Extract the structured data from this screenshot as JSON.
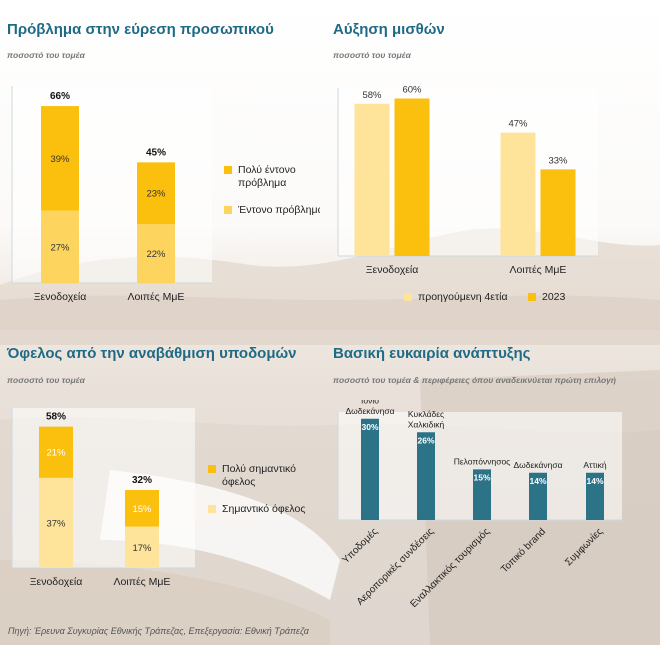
{
  "colors": {
    "dark_yellow": "#fbbf0e",
    "light_yellow": "#fdd55e",
    "pale_yellow": "#fde49a",
    "teal": "#2d7388",
    "title_blue": "#1f6b85"
  },
  "footer": "Πηγή: Έρευνα Συγκυρίας Εθνικής Τράπεζας, Επεξεργασία: Εθνική Τράπεζα",
  "panels": {
    "recruitment": {
      "title": "Πρόβλημα στην εύρεση προσωπικού",
      "subtitle": "ποσοστό του τομέα"
    },
    "wages": {
      "title": "Αύξηση μισθών",
      "subtitle": "ποσοστό του τομέα"
    },
    "infrastructure": {
      "title": "Όφελος από την αναβάθμιση υποδομών",
      "subtitle": "ποσοστό του τομέα"
    },
    "growth": {
      "title": "Βασική ευκαιρία ανάπτυξης",
      "subtitle": "ποσοστό του τομέα & περιφέρειες όπου αναδεικνύεται πρώτη επιλογή"
    }
  },
  "chart_data": [
    {
      "id": "recruitment",
      "type": "bar",
      "stacked": true,
      "categories": [
        "Ξενοδοχεία",
        "Λοιπές ΜμΕ"
      ],
      "series": [
        {
          "name": "Έντονο πρόβλημα",
          "values": [
            27,
            22
          ],
          "labels": [
            "27%",
            "22%"
          ],
          "color": "#fdd55e"
        },
        {
          "name": "Πολύ έντονο πρόβλημα",
          "values": [
            39,
            23
          ],
          "labels": [
            "39%",
            "23%"
          ],
          "color": "#fbbf0e"
        }
      ],
      "totals": [
        66,
        45
      ],
      "total_labels": [
        "66%",
        "45%"
      ],
      "legend": [
        "Πολύ έντονο πρόβλημα",
        "Έντονο πρόβλημα"
      ],
      "ylim": [
        0,
        72
      ]
    },
    {
      "id": "wages",
      "type": "bar",
      "stacked": false,
      "categories": [
        "Ξενοδοχεία",
        "Λοιπές ΜμΕ"
      ],
      "series": [
        {
          "name": "προηγούμενη 4ετία",
          "values": [
            58,
            47
          ],
          "labels": [
            "58%",
            "47%"
          ],
          "color": "#fde49a"
        },
        {
          "name": "2023",
          "values": [
            60,
            33
          ],
          "labels": [
            "60%",
            "33%"
          ],
          "color": "#fbbf0e"
        }
      ],
      "legend": [
        "προηγούμενη 4ετία",
        "2023"
      ],
      "ylim": [
        0,
        64
      ]
    },
    {
      "id": "infrastructure",
      "type": "bar",
      "stacked": true,
      "categories": [
        "Ξενοδοχεία",
        "Λοιπές ΜμΕ"
      ],
      "series": [
        {
          "name": "Σημαντικό όφελος",
          "values": [
            37,
            17
          ],
          "labels": [
            "37%",
            "17%"
          ],
          "color": "#fde49a"
        },
        {
          "name": "Πολύ σημαντικό όφελος",
          "values": [
            21,
            15
          ],
          "labels": [
            "21%",
            "15%"
          ],
          "color": "#fbbf0e"
        }
      ],
      "totals": [
        58,
        32
      ],
      "total_labels": [
        "58%",
        "32%"
      ],
      "legend": [
        "Πολύ σημαντικό όφελος",
        "Σημαντικό όφελος"
      ],
      "ylim": [
        0,
        64
      ]
    },
    {
      "id": "growth",
      "type": "bar",
      "stacked": false,
      "categories": [
        "Υποδομές",
        "Αεροπορικές συνδέσεις",
        "Εναλλακτικός τουρισμός",
        "Τοπικό brand",
        "Συμφωνίες"
      ],
      "values": [
        30,
        26,
        15,
        14,
        14
      ],
      "labels": [
        "30%",
        "26%",
        "15%",
        "14%",
        "14%"
      ],
      "regions": [
        "Κρήτη\nΙόνιο\nΔωδεκάνησα",
        "Κυκλάδες\nΧαλκιδική",
        "Πελοπόννησος",
        "Δωδεκάνησα",
        "Αττική"
      ],
      "color": "#2d7388",
      "ylim": [
        0,
        32
      ]
    }
  ]
}
